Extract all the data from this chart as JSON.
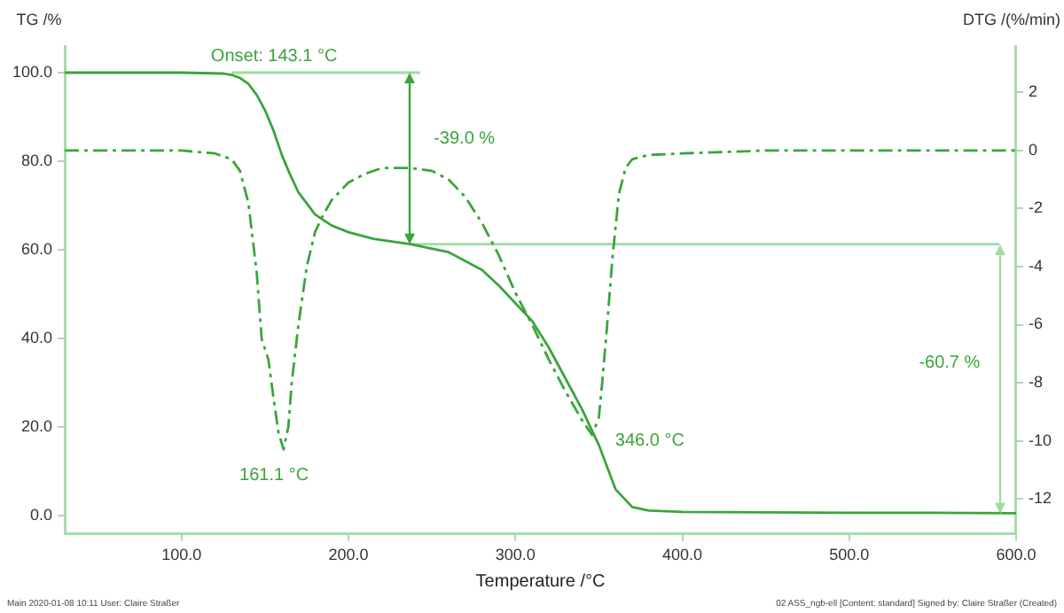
{
  "chart_data": {
    "type": "line",
    "xlabel": "Temperature /°C",
    "ylabel": "TG /%",
    "y2label": "DTG /(%/min)",
    "xlim": [
      30,
      600
    ],
    "xticks": [
      {
        "value": 100,
        "label": "100.0"
      },
      {
        "value": 200,
        "label": "200.0"
      },
      {
        "value": 300,
        "label": "300.0"
      },
      {
        "value": 400,
        "label": "400.0"
      },
      {
        "value": 500,
        "label": "500.0"
      },
      {
        "value": 600,
        "label": "600.0"
      }
    ],
    "ylim": [
      -4,
      106
    ],
    "yticks": [
      {
        "value": 0,
        "label": "0.0"
      },
      {
        "value": 20,
        "label": "20.0"
      },
      {
        "value": 40,
        "label": "40.0"
      },
      {
        "value": 60,
        "label": "60.0"
      },
      {
        "value": 80,
        "label": "80.0"
      },
      {
        "value": 100,
        "label": "100.0"
      }
    ],
    "y2lim": [
      -13.2,
      3.6
    ],
    "y2ticks": [
      -12,
      -10,
      -8,
      -6,
      -4,
      -2,
      0,
      2
    ],
    "grid": false,
    "legend": false,
    "series": [
      {
        "type": "line",
        "color": "#3aa53a",
        "line_style": "solid",
        "x": [
          30,
          70,
          100,
          125,
          130,
          135,
          140,
          145,
          150,
          155,
          160,
          165,
          170,
          180,
          190,
          200,
          215,
          237,
          260,
          280,
          290,
          300,
          310,
          320,
          330,
          340,
          350,
          360,
          370,
          380,
          400,
          450,
          500,
          550,
          600
        ],
        "values": [
          100,
          100,
          100,
          99.8,
          99.5,
          98.8,
          97.5,
          95,
          91.5,
          87,
          81.5,
          77,
          73,
          68,
          65.5,
          64,
          62.5,
          61.3,
          59.5,
          55.5,
          52,
          48,
          44,
          38,
          31,
          24,
          16,
          6,
          2,
          1.2,
          0.9,
          0.8,
          0.7,
          0.7,
          0.6
        ]
      },
      {
        "type": "line",
        "color": "#3aa53a",
        "line_style": "dashed",
        "axis": "y2",
        "x": [
          30,
          60,
          100,
          120,
          130,
          135,
          140,
          145,
          148,
          152,
          155,
          158,
          161.1,
          164,
          166,
          170,
          175,
          180,
          185,
          190,
          200,
          210,
          220,
          237,
          250,
          260,
          270,
          280,
          290,
          300,
          310,
          320,
          330,
          335,
          340,
          346,
          350,
          352,
          355,
          358,
          362,
          366,
          370,
          380,
          400,
          450,
          500,
          550,
          600
        ],
        "values": [
          0,
          0,
          0,
          -0.1,
          -0.3,
          -0.7,
          -1.8,
          -4.2,
          -6.5,
          -7.2,
          -8.5,
          -9.7,
          -10.3,
          -9.5,
          -8,
          -6,
          -4,
          -2.8,
          -2.2,
          -1.7,
          -1.1,
          -0.8,
          -0.6,
          -0.6,
          -0.7,
          -1,
          -1.6,
          -2.5,
          -3.6,
          -4.9,
          -6,
          -7.2,
          -8.3,
          -8.8,
          -9.3,
          -9.8,
          -9.2,
          -8,
          -6,
          -3.8,
          -1.5,
          -0.6,
          -0.3,
          -0.15,
          -0.1,
          0,
          0,
          0,
          0
        ]
      },
      {
        "type": "line",
        "color": "#9fdc9f",
        "line_style": "solid",
        "x": [
          130,
          243
        ],
        "values": [
          100,
          100
        ]
      },
      {
        "type": "line",
        "color": "#9fdc9f",
        "line_style": "solid",
        "x": [
          237,
          590
        ],
        "values": [
          61.3,
          61.3
        ]
      }
    ],
    "annotations": [
      "Onset: 143.1 °C",
      "-39.0 %",
      "161.1 °C",
      "346.0 °C",
      "-60.7 %",
      "Main   2020-01-08 10:11   User: Claire Straßer",
      "02 ASS_ngb-ell [Content: standard]  Signed by: Claire Straßer (Created)"
    ]
  }
}
